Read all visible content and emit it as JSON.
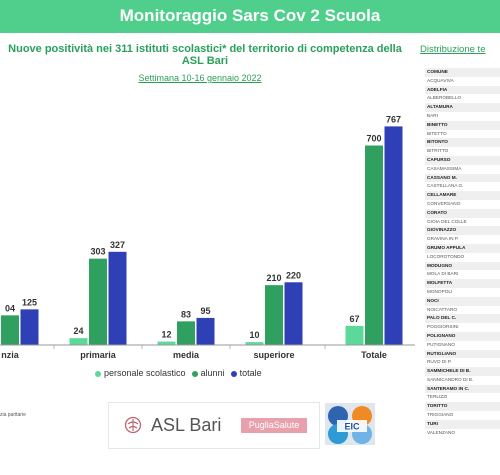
{
  "header": {
    "title": "Monitoraggio Sars Cov 2 Scuola"
  },
  "subtitle": "Nuove positività nei 311 istituti scolastici* del territorio di competenza della ASL Bari",
  "week_label": "Settimana 10-16 gennaio 2022",
  "distribution_title": "Distribuzione te",
  "chart_data": {
    "type": "bar",
    "categories": [
      "nzia",
      "primaria",
      "media",
      "superiore",
      "Totale"
    ],
    "series": [
      {
        "name": "personale scolastico",
        "values": [
          null,
          24,
          12,
          10,
          67
        ]
      },
      {
        "name": "alunni",
        "values": [
          104,
          303,
          83,
          210,
          700
        ]
      },
      {
        "name": "totale",
        "values": [
          125,
          327,
          95,
          220,
          767
        ]
      }
    ],
    "data_labels": [
      [
        "",
        "24",
        "12",
        "10",
        "67"
      ],
      [
        "04",
        "303",
        "83",
        "210",
        "700"
      ],
      [
        "125",
        "327",
        "95",
        "220",
        "767"
      ]
    ],
    "ylim": [
      0,
      800
    ],
    "colors": [
      "#5cd89a",
      "#2fa060",
      "#2f3fb5"
    ],
    "legend_position": "bottom"
  },
  "legend": {
    "items": [
      {
        "label": "personale scolastico",
        "color": "#5cd89a"
      },
      {
        "label": "alunni",
        "color": "#2fa060"
      },
      {
        "label": "totale",
        "color": "#2f3fb5"
      }
    ]
  },
  "footnote": "zia paritarie",
  "logos": {
    "asl": "ASL Bari",
    "puglia": "PugliaSalute",
    "eic": "EIC"
  },
  "municipalities": [
    {
      "name": "COMUNE",
      "bold": true
    },
    {
      "name": "ACQUAVIVA",
      "bold": false
    },
    {
      "name": "ADELFIA",
      "bold": true
    },
    {
      "name": "ALBEROBELLO",
      "bold": false
    },
    {
      "name": "ALTAMURA",
      "bold": true
    },
    {
      "name": "BARI",
      "bold": false
    },
    {
      "name": "BINETTO",
      "bold": true
    },
    {
      "name": "BITETTO",
      "bold": false
    },
    {
      "name": "BITONTO",
      "bold": true
    },
    {
      "name": "BITRITTO",
      "bold": false
    },
    {
      "name": "CAPURSO",
      "bold": true
    },
    {
      "name": "CASAMASSIMA",
      "bold": false
    },
    {
      "name": "CASSANO M.",
      "bold": true
    },
    {
      "name": "CASTELLANA G.",
      "bold": false
    },
    {
      "name": "CELLAMARE",
      "bold": true
    },
    {
      "name": "CONVERSANO",
      "bold": false
    },
    {
      "name": "CORATO",
      "bold": true
    },
    {
      "name": "GIOIA DEL COLLE",
      "bold": false
    },
    {
      "name": "GIOVINAZZO",
      "bold": true
    },
    {
      "name": "GRAVINA IN P.",
      "bold": false
    },
    {
      "name": "GRUMO APPULA",
      "bold": true
    },
    {
      "name": "LOCOROTONDO",
      "bold": false
    },
    {
      "name": "MODUGNO",
      "bold": true
    },
    {
      "name": "MOLA DI BARI",
      "bold": false
    },
    {
      "name": "MOLFETTA",
      "bold": true
    },
    {
      "name": "MONOPOLI",
      "bold": false
    },
    {
      "name": "NOCI",
      "bold": true
    },
    {
      "name": "NOICATTARO",
      "bold": false
    },
    {
      "name": "PALO DEL C.",
      "bold": true
    },
    {
      "name": "POGGIORSINI",
      "bold": false
    },
    {
      "name": "POLIGNANO",
      "bold": true
    },
    {
      "name": "PUTIGNANO",
      "bold": false
    },
    {
      "name": "RUTIGLIANO",
      "bold": true
    },
    {
      "name": "RUVO DI P.",
      "bold": false
    },
    {
      "name": "SAMMICHELE DI B.",
      "bold": true
    },
    {
      "name": "SANNICANDRO DI B.",
      "bold": false
    },
    {
      "name": "SANTERAMO IN C.",
      "bold": true
    },
    {
      "name": "TERLIZZI",
      "bold": false
    },
    {
      "name": "TORITTO",
      "bold": true
    },
    {
      "name": "TRIGGIANO",
      "bold": false
    },
    {
      "name": "TURI",
      "bold": true
    },
    {
      "name": "VALENZANO",
      "bold": false
    }
  ]
}
